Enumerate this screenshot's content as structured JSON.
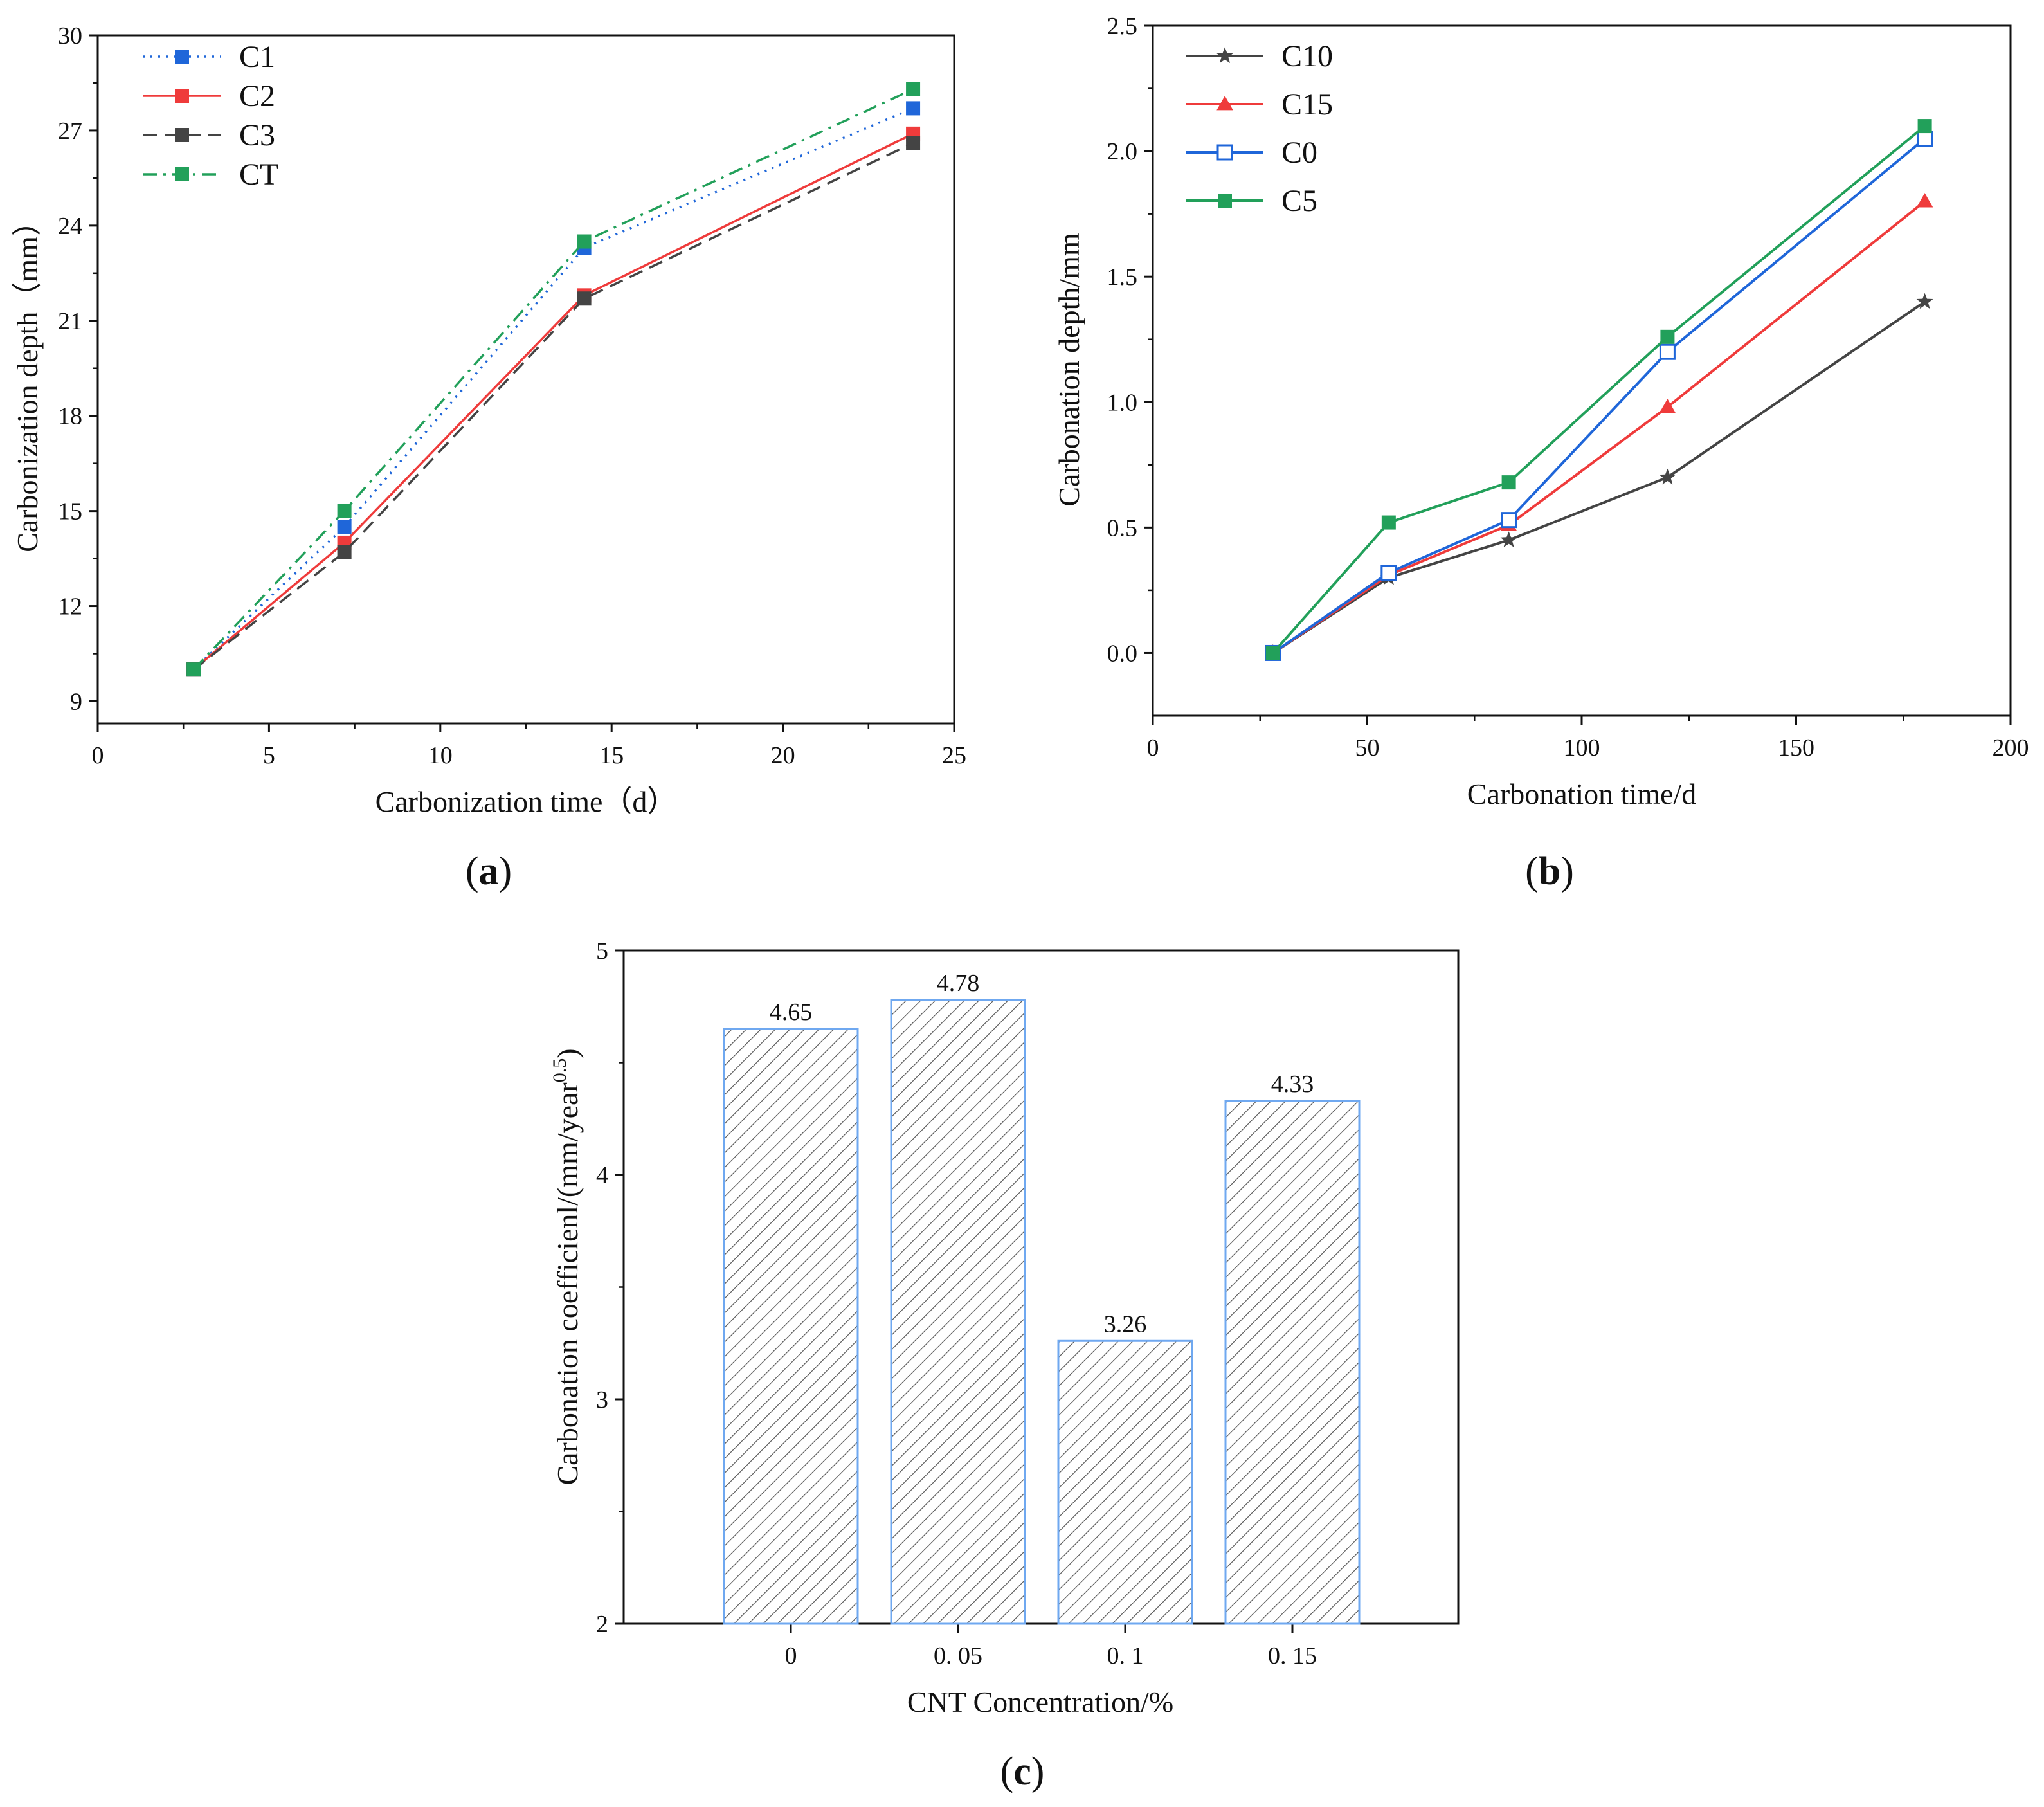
{
  "chart_data": [
    {
      "id": "a",
      "type": "line",
      "panel_label": "a",
      "xlabel": "Carbonization time（d）",
      "ylabel": "Carbonization depth（mm）",
      "xlim": [
        0,
        25
      ],
      "ylim": [
        8.3,
        30
      ],
      "xticks": [
        "0",
        "5",
        "10",
        "15",
        "20",
        "25"
      ],
      "yticks": [
        "9",
        "12",
        "15",
        "18",
        "21",
        "24",
        "27",
        "30"
      ],
      "legend_position": "top-left",
      "series": [
        {
          "name": "C1",
          "color": "#1f66d9",
          "dash": "dotted",
          "marker": "square",
          "x": [
            2.8,
            7.2,
            14.2,
            23.8
          ],
          "y": [
            10.0,
            14.5,
            23.3,
            27.7
          ]
        },
        {
          "name": "C2",
          "color": "#ef3b3b",
          "dash": "solid",
          "marker": "square",
          "x": [
            2.8,
            7.2,
            14.2,
            23.8
          ],
          "y": [
            10.0,
            14.0,
            21.8,
            26.9
          ]
        },
        {
          "name": "C3",
          "color": "#444444",
          "dash": "dashed",
          "marker": "square",
          "x": [
            2.8,
            7.2,
            14.2,
            23.8
          ],
          "y": [
            10.0,
            13.7,
            21.7,
            26.6
          ]
        },
        {
          "name": "CT",
          "color": "#22a05a",
          "dash": "dashdot",
          "marker": "square",
          "x": [
            2.8,
            7.2,
            14.2,
            23.8
          ],
          "y": [
            10.0,
            15.0,
            23.5,
            28.3
          ]
        }
      ]
    },
    {
      "id": "b",
      "type": "line",
      "panel_label": "b",
      "xlabel": "Carbonation time/d",
      "ylabel": "Carbonation depth/mm",
      "xlim": [
        0,
        200
      ],
      "ylim": [
        -0.25,
        2.5
      ],
      "xticks": [
        "0",
        "50",
        "100",
        "150",
        "200"
      ],
      "yticks": [
        "0.0",
        "0.5",
        "1.0",
        "1.5",
        "2.0",
        "2.5"
      ],
      "legend_position": "top-left",
      "series": [
        {
          "name": "C10",
          "color": "#444444",
          "marker": "star",
          "x": [
            28,
            55,
            83,
            120,
            180
          ],
          "y": [
            0.0,
            0.3,
            0.45,
            0.7,
            1.4
          ]
        },
        {
          "name": "C15",
          "color": "#ef3b3b",
          "marker": "triangle",
          "x": [
            28,
            55,
            83,
            120,
            180
          ],
          "y": [
            0.0,
            0.31,
            0.51,
            0.98,
            1.8
          ]
        },
        {
          "name": "C0",
          "color": "#1f66d9",
          "marker": "open-square",
          "x": [
            28,
            55,
            83,
            120,
            180
          ],
          "y": [
            0.0,
            0.32,
            0.53,
            1.2,
            2.05
          ]
        },
        {
          "name": "C5",
          "color": "#22a05a",
          "marker": "square",
          "x": [
            28,
            55,
            83,
            120,
            180
          ],
          "y": [
            0.0,
            0.52,
            0.68,
            1.26,
            2.1
          ]
        }
      ]
    },
    {
      "id": "c",
      "type": "bar",
      "panel_label": "c",
      "xlabel": "CNT Concentration/%",
      "ylabel": "Carbonation coefficienl/(mm/year",
      "ylabel_sup": "0.5",
      "ylabel_close": ")",
      "ylim": [
        2,
        5
      ],
      "yticks": [
        "2",
        "3",
        "4",
        "5"
      ],
      "categories": [
        "0",
        "0. 05",
        "0. 1",
        "0. 15"
      ],
      "values": [
        4.65,
        4.78,
        3.26,
        4.33
      ],
      "value_labels": [
        "4.65",
        "4.78",
        "3.26",
        "4.33"
      ],
      "bar_edge_color": "#6fa8f0",
      "hatch_color": "#555555"
    }
  ]
}
